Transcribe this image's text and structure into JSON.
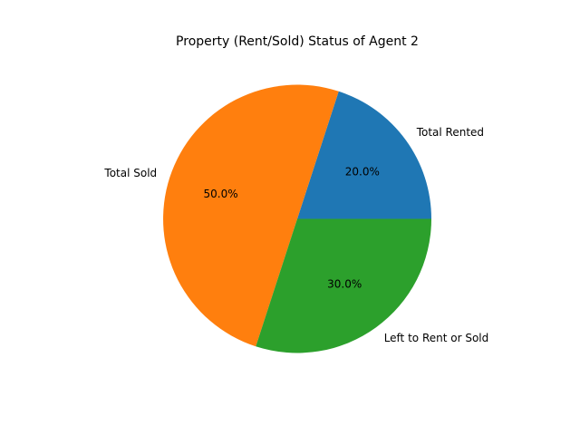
{
  "chart_data": {
    "type": "pie",
    "title": "Property (Rent/Sold) Status of Agent 2",
    "categories": [
      "Total Rented",
      "Total Sold",
      "Left to Rent or Sold"
    ],
    "values": [
      20,
      50,
      30
    ],
    "percent_labels": [
      "20.0%",
      "50.0%",
      "30.0%"
    ],
    "colors": [
      "#1f77b4",
      "#ff7f0e",
      "#2ca02c"
    ],
    "start_angle": 0,
    "direction": "counterclockwise"
  }
}
